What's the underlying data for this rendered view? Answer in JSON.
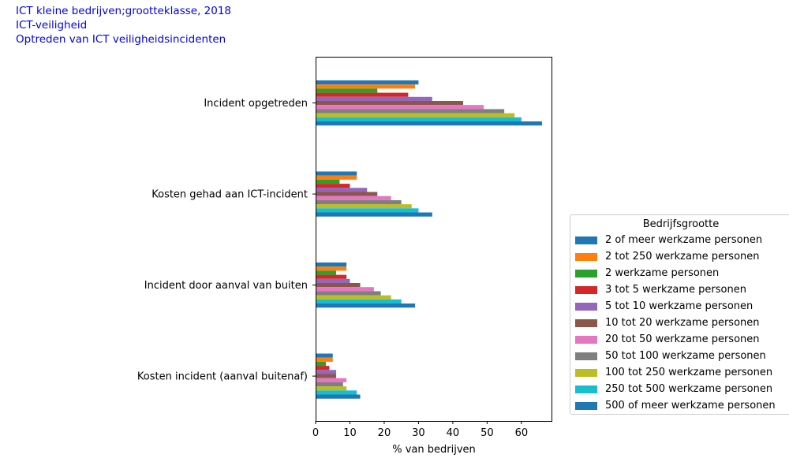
{
  "header": {
    "line1": "ICT kleine bedrijven;grootteklasse, 2018",
    "line2": "ICT-veiligheid",
    "line3": "Optreden van ICT veiligheidsincidenten"
  },
  "chart_data": {
    "type": "bar",
    "orientation": "horizontal",
    "categories": [
      "Incident opgetreden",
      "Kosten gehad aan ICT-incident",
      "Incident door aanval van buiten",
      "Kosten incident (aanval buitenaf)"
    ],
    "xlabel": "% van bedrijven",
    "xlim": [
      0,
      69
    ],
    "xticks": [
      0,
      10,
      20,
      30,
      40,
      50,
      60
    ],
    "legend_title": "Bedrijfsgrootte",
    "legend_position": "right",
    "series": [
      {
        "name": "2 of meer werkzame personen",
        "color": "#1f77b4",
        "values": [
          30,
          12,
          9,
          5
        ]
      },
      {
        "name": "2 tot 250 werkzame personen",
        "color": "#ff7f0e",
        "values": [
          29,
          12,
          9,
          5
        ]
      },
      {
        "name": "2 werkzame personen",
        "color": "#2ca02c",
        "values": [
          18,
          7,
          6,
          3
        ]
      },
      {
        "name": "3 tot 5 werkzame personen",
        "color": "#d62728",
        "values": [
          27,
          10,
          9,
          4
        ]
      },
      {
        "name": "5 tot 10 werkzame personen",
        "color": "#9467bd",
        "values": [
          34,
          15,
          10,
          6
        ]
      },
      {
        "name": "10 tot 20 werkzame personen",
        "color": "#8c564b",
        "values": [
          43,
          18,
          13,
          6
        ]
      },
      {
        "name": "20 tot 50 werkzame personen",
        "color": "#e377c2",
        "values": [
          49,
          22,
          17,
          9
        ]
      },
      {
        "name": "50 tot 100 werkzame personen",
        "color": "#7f7f7f",
        "values": [
          55,
          25,
          19,
          8
        ]
      },
      {
        "name": "100 tot 250 werkzame personen",
        "color": "#bcbd22",
        "values": [
          58,
          28,
          22,
          9
        ]
      },
      {
        "name": "250 tot 500 werkzame personen",
        "color": "#17becf",
        "values": [
          60,
          30,
          25,
          12
        ]
      },
      {
        "name": "500 of meer werkzame personen",
        "color": "#1f77b4",
        "values": [
          66,
          34,
          29,
          13
        ]
      }
    ]
  }
}
